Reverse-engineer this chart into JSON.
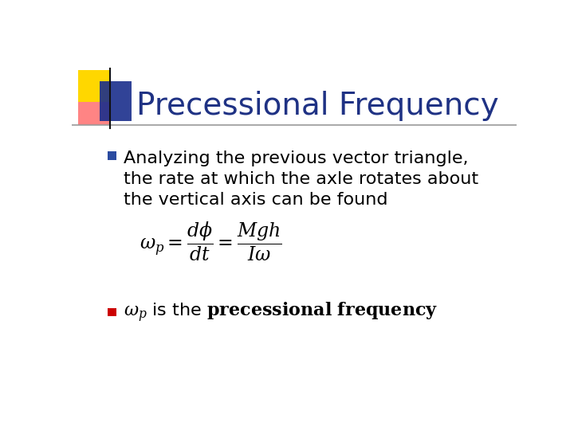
{
  "title": "Precessional Frequency",
  "title_color": "#1F3284",
  "title_fontsize": 28,
  "background_color": "#FFFFFF",
  "bullet1_line1": "Analyzing the previous vector triangle,",
  "bullet1_line2": "the rate at which the axle rotates about",
  "bullet1_line3": "the vertical axis can be found",
  "bullet_square_color1": "#2B4BA0",
  "text_color": "#000000",
  "bullet2_bold": "precessional frequency",
  "bullet2_square_color": "#CC0000",
  "decorator_yellow": "#FFD700",
  "decorator_red": "#FF6666",
  "decorator_blue": "#1A2E8C",
  "separator_color": "#999999",
  "text_fontsize": 16,
  "eq_fontsize": 17
}
